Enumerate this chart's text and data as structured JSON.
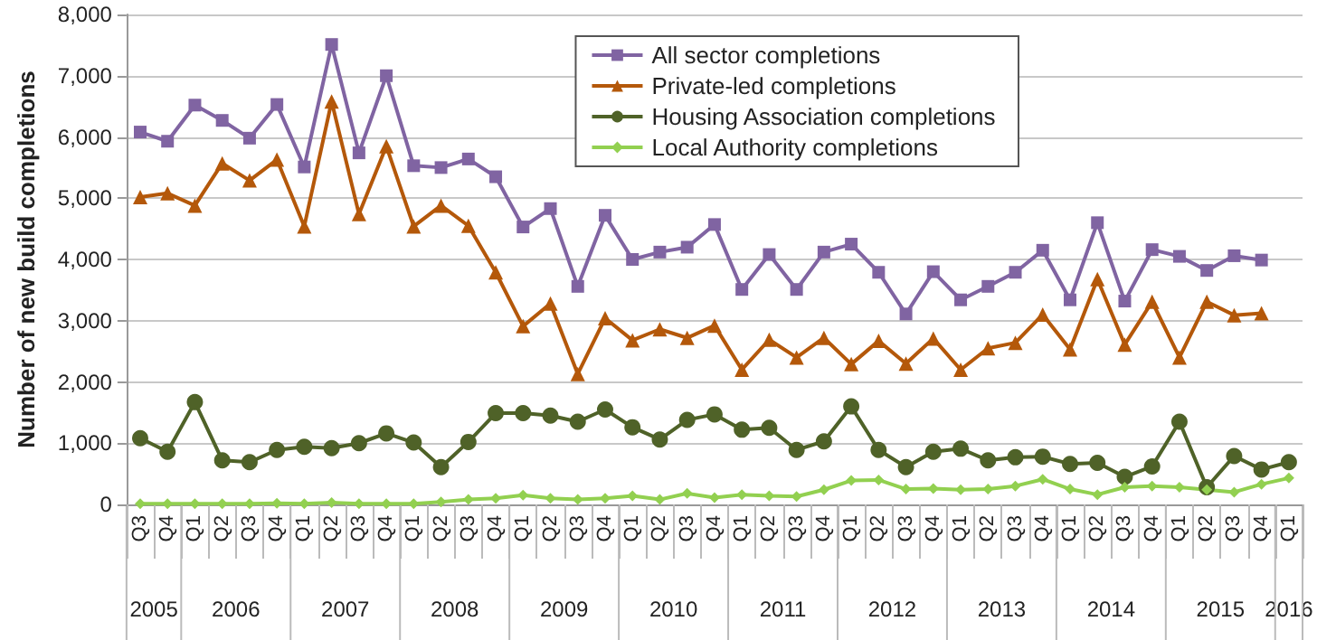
{
  "chart_data": {
    "type": "line",
    "ylabel": "Number of new build completions",
    "categories": [
      "Q3",
      "Q4",
      "Q1",
      "Q2",
      "Q3",
      "Q4",
      "Q1",
      "Q2",
      "Q3",
      "Q4",
      "Q1",
      "Q2",
      "Q3",
      "Q4",
      "Q1",
      "Q2",
      "Q3",
      "Q4",
      "Q1",
      "Q2",
      "Q3",
      "Q4",
      "Q1",
      "Q2",
      "Q3",
      "Q4",
      "Q1",
      "Q2",
      "Q3",
      "Q4",
      "Q1",
      "Q2",
      "Q3",
      "Q4",
      "Q1",
      "Q2",
      "Q3",
      "Q4",
      "Q1",
      "Q2",
      "Q3",
      "Q4",
      "Q1"
    ],
    "annotations": [
      "2005",
      "2006",
      "2007",
      "2008",
      "2009",
      "2010",
      "2011",
      "2012",
      "2013",
      "2014",
      "2015",
      "2016"
    ],
    "series": [
      {
        "name": "All sector completions",
        "color": "#8064a2",
        "marker": "square",
        "values": [
          6080,
          5930,
          6520,
          6270,
          5980,
          6530,
          5510,
          7510,
          5740,
          7000,
          5530,
          5500,
          5640,
          5350,
          4530,
          4830,
          3560,
          4720,
          4000,
          4120,
          4200,
          4570,
          3510,
          4080,
          3510,
          4120,
          4250,
          3790,
          3110,
          3800,
          3340,
          3560,
          3790,
          4150,
          3340,
          4600,
          3320,
          4160,
          4050,
          3820,
          4060,
          3990,
          null
        ]
      },
      {
        "name": "Private-led completions",
        "color": "#b4580a",
        "marker": "triangle",
        "values": [
          5020,
          5080,
          4880,
          5570,
          5290,
          5630,
          4540,
          6580,
          4740,
          5850,
          4540,
          4880,
          4550,
          3790,
          2910,
          3280,
          2130,
          3040,
          2680,
          2860,
          2720,
          2920,
          2200,
          2690,
          2400,
          2720,
          2290,
          2670,
          2300,
          2710,
          2200,
          2550,
          2640,
          3100,
          2530,
          3680,
          2610,
          3310,
          2400,
          3310,
          3090,
          3120,
          null
        ]
      },
      {
        "name": "Housing Association completions",
        "color": "#4f6228",
        "marker": "circle",
        "values": [
          1080,
          860,
          1670,
          720,
          690,
          890,
          940,
          920,
          1000,
          1160,
          1010,
          610,
          1020,
          1490,
          1490,
          1450,
          1350,
          1550,
          1260,
          1060,
          1380,
          1470,
          1220,
          1250,
          890,
          1030,
          1600,
          890,
          610,
          860,
          910,
          720,
          770,
          780,
          660,
          680,
          450,
          620,
          1350,
          280,
          790,
          570,
          690
        ]
      },
      {
        "name": "Local Authority completions",
        "color": "#92d050",
        "marker": "diamond",
        "values": [
          10,
          10,
          10,
          10,
          10,
          20,
          10,
          30,
          10,
          10,
          10,
          40,
          80,
          100,
          150,
          100,
          80,
          100,
          140,
          80,
          180,
          110,
          160,
          140,
          130,
          240,
          390,
          400,
          250,
          260,
          240,
          250,
          300,
          410,
          250,
          160,
          280,
          300,
          280,
          240,
          200,
          330,
          430
        ]
      }
    ],
    "ylim": [
      0,
      8000
    ],
    "yticks": [
      0,
      {
        "value": 1000,
        "label": "1,000"
      },
      {
        "value": 2000,
        "label": "2,000"
      },
      {
        "value": 3000,
        "label": "3,000"
      },
      {
        "value": 4000,
        "label": "4,000"
      },
      {
        "value": 5000,
        "label": "5,000"
      },
      {
        "value": 6000,
        "label": "6,000"
      },
      {
        "value": 7000,
        "label": "7,000"
      },
      {
        "value": 8000,
        "label": "8,000"
      }
    ],
    "grid": "y",
    "legend": "top right"
  }
}
